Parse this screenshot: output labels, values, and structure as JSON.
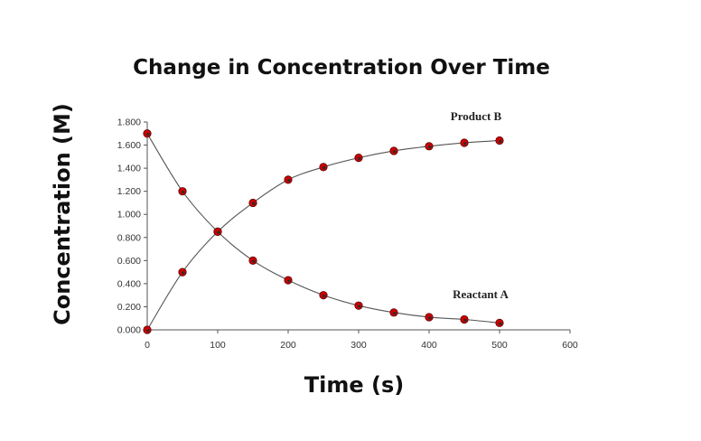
{
  "chart_data": {
    "type": "scatter",
    "title": "Change in Concentration Over Time",
    "xlabel": "Time (s)",
    "ylabel": "Concentration (M)",
    "xlim": [
      0,
      600
    ],
    "ylim": [
      0,
      1.8
    ],
    "x_ticks": [
      "0",
      "100",
      "200",
      "300",
      "400",
      "500",
      "600"
    ],
    "y_ticks": [
      "0.000",
      "0.200",
      "0.400",
      "0.600",
      "0.800",
      "1.000",
      "1.200",
      "1.400",
      "1.600",
      "1.800"
    ],
    "grid": false,
    "legend": "none",
    "series": [
      {
        "name": "Product B",
        "x": [
          0,
          50,
          100,
          150,
          200,
          250,
          300,
          350,
          400,
          450,
          500
        ],
        "y": [
          0.0,
          0.5,
          0.85,
          1.1,
          1.3,
          1.41,
          1.49,
          1.55,
          1.59,
          1.62,
          1.64
        ],
        "marker_color": "#cc0000",
        "line_color": "#555555"
      },
      {
        "name": "Reactant A",
        "x": [
          0,
          50,
          100,
          150,
          200,
          250,
          300,
          350,
          400,
          450,
          500
        ],
        "y": [
          1.7,
          1.2,
          0.85,
          0.6,
          0.43,
          0.3,
          0.21,
          0.15,
          0.11,
          0.09,
          0.06
        ],
        "marker_color": "#cc0000",
        "line_color": "#555555"
      }
    ]
  }
}
